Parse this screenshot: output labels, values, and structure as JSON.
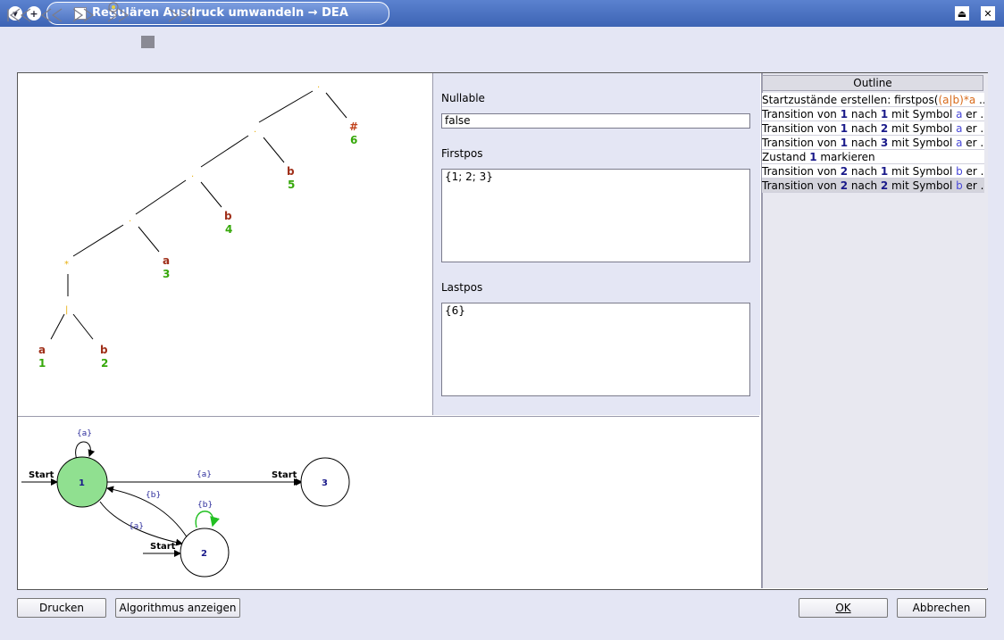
{
  "window": {
    "title": "Regulären Ausdruck umwandeln → DEA"
  },
  "tree": {
    "leaves": [
      {
        "symbol": "a",
        "pos": "1"
      },
      {
        "symbol": "b",
        "pos": "2"
      },
      {
        "symbol": "a",
        "pos": "3"
      },
      {
        "symbol": "b",
        "pos": "4"
      },
      {
        "symbol": "b",
        "pos": "5"
      },
      {
        "symbol": "#",
        "pos": "6"
      }
    ],
    "operators": {
      "concat": "·",
      "star": "*",
      "union": "|"
    }
  },
  "props": {
    "nullable_label": "Nullable",
    "nullable_value": "false",
    "firstpos_label": "Firstpos",
    "firstpos_value": "{1; 2; 3}",
    "lastpos_label": "Lastpos",
    "lastpos_value": "{6}"
  },
  "graph": {
    "states": [
      "1",
      "2",
      "3"
    ],
    "start_label": "Start",
    "edge_labels": {
      "a": "{a}",
      "b": "{b}"
    }
  },
  "outline": {
    "header": "Outline",
    "row0": {
      "text": "Startzustände erstellen: firstpos(",
      "re": "(a|b)*a",
      "tail": " ..."
    },
    "transitions": [
      {
        "pre": "Transition von ",
        "from": "1",
        "mid": " nach ",
        "to": "1",
        "sym_pre": " mit Symbol ",
        "sym": "a",
        "end": " er ..."
      },
      {
        "pre": "Transition von ",
        "from": "1",
        "mid": " nach ",
        "to": "2",
        "sym_pre": " mit Symbol ",
        "sym": "a",
        "end": " er ..."
      },
      {
        "pre": "Transition von ",
        "from": "1",
        "mid": " nach ",
        "to": "3",
        "sym_pre": " mit Symbol ",
        "sym": "a",
        "end": " er ..."
      }
    ],
    "mark": {
      "pre": "Zustand ",
      "state": "1",
      "post": " markieren"
    },
    "transitions2": [
      {
        "pre": "Transition von ",
        "from": "2",
        "mid": " nach ",
        "to": "1",
        "sym_pre": " mit Symbol ",
        "sym": "b",
        "end": " er ..."
      },
      {
        "pre": "Transition von ",
        "from": "2",
        "mid": " nach ",
        "to": "2",
        "sym_pre": " mit Symbol ",
        "sym": "b",
        "end": " er ..."
      }
    ]
  },
  "buttons": {
    "print": "Drucken",
    "show_algorithm": "Algorithmus anzeigen",
    "ok": "OK",
    "cancel": "Abbrechen"
  },
  "toolbar": {
    "icons": [
      "skip-to-start-icon",
      "step-back-icon",
      "step-forward-icon",
      "autoplay-icon",
      "stop-icon",
      "skip-to-end-icon"
    ]
  },
  "colors": {
    "accent": "#4b71c0",
    "symbol": "#a0301a",
    "position": "#36a80a",
    "state_active": "#90e090"
  }
}
